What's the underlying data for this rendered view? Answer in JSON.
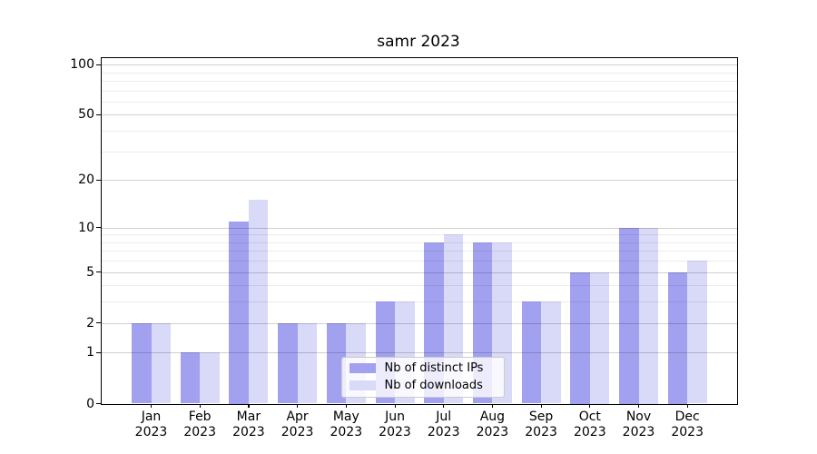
{
  "chart_data": {
    "type": "bar",
    "title": "samr 2023",
    "categories": [
      "Jan 2023",
      "Feb 2023",
      "Mar 2023",
      "Apr 2023",
      "May 2023",
      "Jun 2023",
      "Jul 2023",
      "Aug 2023",
      "Sep 2023",
      "Oct 2023",
      "Nov 2023",
      "Dec 2023"
    ],
    "series": [
      {
        "key": "distinct-ips",
        "name": "Nb of distinct IPs",
        "color": "#a1a1ef",
        "values": [
          2,
          1,
          11,
          2,
          2,
          3,
          8,
          8,
          3,
          5,
          10,
          5
        ]
      },
      {
        "key": "downloads",
        "name": "Nb of downloads",
        "color": "#d9d9f8",
        "values": [
          2,
          1,
          15,
          2,
          2,
          3,
          9,
          8,
          3,
          5,
          10,
          6
        ]
      }
    ],
    "xlabel": "",
    "ylabel": "",
    "yscale": "log1p",
    "ylim": [
      0,
      110
    ],
    "y_major_ticks": [
      0,
      1,
      2,
      5,
      10,
      20,
      50,
      100
    ],
    "y_minor_ticks": [
      3,
      4,
      6,
      7,
      8,
      9,
      30,
      40,
      60,
      70,
      80,
      90
    ],
    "grid": true,
    "legend_position": "lower center"
  },
  "colors": {
    "background": "#ffffff",
    "spine": "#000000",
    "text": "#000000",
    "legend_border": "#cccccc"
  }
}
